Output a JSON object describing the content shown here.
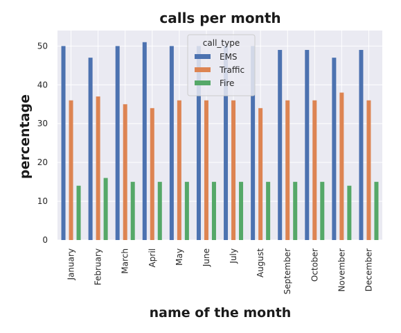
{
  "chart_data": {
    "type": "bar",
    "title": "calls per month",
    "xlabel": "name of the month",
    "ylabel": "percentage",
    "ylim": [
      0,
      54
    ],
    "yticks": [
      0,
      10,
      20,
      30,
      40,
      50
    ],
    "grid": true,
    "legend": {
      "title": "call_type",
      "placement": "top-center"
    },
    "categories": [
      "January",
      "February",
      "March",
      "April",
      "May",
      "June",
      "July",
      "August",
      "September",
      "October",
      "November",
      "December"
    ],
    "series": [
      {
        "name": "EMS",
        "color": "#4c72b0",
        "values": [
          50,
          47,
          50,
          51,
          50,
          50,
          50,
          50,
          49,
          49,
          47,
          49
        ]
      },
      {
        "name": "Traffic",
        "color": "#dd8452",
        "values": [
          36,
          37,
          35,
          34,
          36,
          36,
          36,
          34,
          36,
          36,
          38,
          36
        ]
      },
      {
        "name": "Fire",
        "color": "#55a868",
        "values": [
          14,
          16,
          15,
          15,
          15,
          15,
          15,
          15,
          15,
          15,
          14,
          15
        ]
      }
    ]
  },
  "colors": {
    "plot_background": "#eaeaf2",
    "grid": "#ffffff"
  }
}
